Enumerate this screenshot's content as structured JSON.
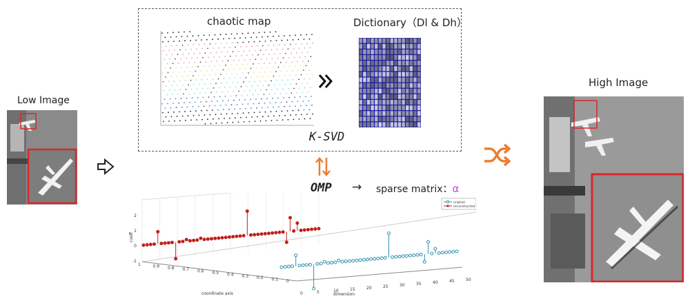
{
  "low_image": {
    "label": "Low Image"
  },
  "high_image": {
    "label": "High Image"
  },
  "chaotic_map": {
    "title": "chaotic map"
  },
  "dictionary": {
    "title": "Dictionary（Dl & Dh）"
  },
  "ksvd": {
    "label": "K-SVD"
  },
  "omp": {
    "label": "OMP",
    "arrow": "→",
    "sparse_label": "sparse matrix：",
    "alpha": "α"
  },
  "colors": {
    "accent_orange": "#ed7d31",
    "red_box": "#d9262a",
    "dict_blue": "#1a1aa0",
    "alpha_purple": "#c050d0",
    "original": "#2e8fb0",
    "reconstructed": "#c0201a"
  },
  "chart_data": {
    "type": "stem3d",
    "ylabel": "coeff",
    "xlabel": "coordinate axis",
    "zlabel": "dimension",
    "coeff_ticks": [
      "2",
      "1",
      "0",
      "-1"
    ],
    "coord_ticks": [
      "1",
      "0.9",
      "0.8",
      "0.7",
      "0.6",
      "0.5",
      "0.4",
      "0.3",
      "0.2",
      "0.1",
      "0"
    ],
    "dim_ticks": [
      "0",
      "5",
      "10",
      "15",
      "20",
      "25",
      "30",
      "35",
      "40",
      "45",
      "50"
    ],
    "legend": [
      "original",
      "reconstructed"
    ],
    "series": [
      {
        "name": "original",
        "values": [
          0,
          0,
          0,
          0,
          0.7,
          0,
          0,
          0,
          0,
          -1.6,
          0,
          0,
          0.1,
          0,
          0,
          0,
          0.1,
          0,
          0,
          0,
          0,
          0,
          0,
          0,
          0,
          0,
          0,
          0,
          0,
          0,
          1.6,
          0,
          0,
          0,
          0,
          0,
          0,
          0,
          0,
          0,
          -0.5,
          0.8,
          0,
          0.3,
          0,
          0,
          0,
          0,
          0,
          0
        ]
      },
      {
        "name": "reconstructed",
        "values": [
          0,
          0,
          0,
          0,
          0.8,
          0,
          0,
          0,
          0,
          -1.1,
          0,
          0,
          0.1,
          0,
          0,
          0,
          0.1,
          0,
          0,
          0,
          0,
          0,
          0,
          0,
          0,
          0,
          0,
          0,
          0,
          1.6,
          0,
          0,
          0,
          0,
          0,
          0,
          0,
          0,
          0,
          0,
          -0.7,
          0.9,
          0,
          0.5,
          0,
          0,
          0,
          0,
          0,
          0
        ]
      }
    ]
  }
}
